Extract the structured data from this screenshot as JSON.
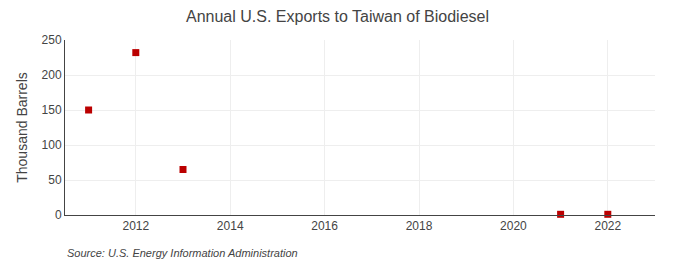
{
  "chart_data": {
    "type": "scatter",
    "title": "Annual U.S. Exports to Taiwan of Biodiesel",
    "ylabel": "Thousand Barrels",
    "annotations": [
      "Source: U.S. Energy Information Administration"
    ],
    "x": [
      2011,
      2012,
      2013,
      2021,
      2022
    ],
    "values": [
      150,
      232,
      65,
      1,
      1
    ],
    "color": "#bb0000",
    "marker": "square",
    "xlim": [
      2010.5,
      2023
    ],
    "xticks": [
      2012,
      2014,
      2016,
      2018,
      2020,
      2022
    ],
    "ylim": [
      0,
      250
    ],
    "yticks": [
      0,
      50,
      100,
      150,
      200,
      250
    ],
    "grid": true
  }
}
